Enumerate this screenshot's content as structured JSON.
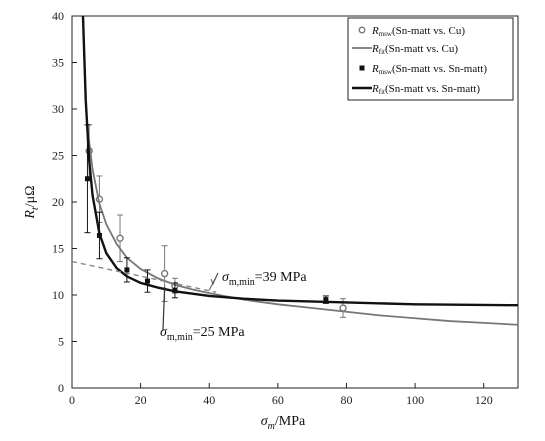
{
  "chart_data": {
    "type": "line",
    "title": "",
    "xlabel": "σm/MPa",
    "ylabel": "Rt/μΩ",
    "xlim": [
      0,
      130
    ],
    "ylim": [
      0,
      40
    ],
    "x_ticks": [
      "0",
      "20",
      "40",
      "60",
      "80",
      "100",
      "120"
    ],
    "y_ticks": [
      "0",
      "5",
      "10",
      "15",
      "20",
      "25",
      "30",
      "35",
      "40"
    ],
    "grid": false,
    "legend_position": "top-right",
    "series": [
      {
        "name": "Rmsw(Sn-matt vs. Cu)",
        "kind": "measured",
        "marker": "circle",
        "color": "#777777",
        "points": [
          {
            "x": 5,
            "y": 25.5,
            "err": 2.8
          },
          {
            "x": 8,
            "y": 20.3,
            "err": 2.5
          },
          {
            "x": 14,
            "y": 16.1,
            "err": 2.5
          },
          {
            "x": 27,
            "y": 12.3,
            "err": 3.0
          },
          {
            "x": 30,
            "y": 11.0,
            "err": 0.8
          },
          {
            "x": 79,
            "y": 8.6,
            "err": 1.0
          }
        ]
      },
      {
        "name": "Rfit(Sn-matt vs. Cu)",
        "kind": "fit",
        "color": "#777777",
        "stroke_width": 1.8,
        "x": [
          4.5,
          6,
          8,
          10,
          13,
          16,
          20,
          25,
          30,
          35,
          40,
          50,
          60,
          70,
          80,
          90,
          100,
          110,
          120,
          130
        ],
        "y": [
          28.0,
          23.5,
          19.8,
          17.6,
          15.5,
          14.0,
          12.8,
          11.8,
          11.1,
          10.6,
          10.2,
          9.5,
          9.0,
          8.6,
          8.2,
          7.8,
          7.5,
          7.2,
          7.0,
          6.8
        ]
      },
      {
        "name": "Rmsw(Sn-matt vs. Sn-matt)",
        "kind": "measured",
        "marker": "square",
        "color": "#111111",
        "points": [
          {
            "x": 4.5,
            "y": 22.5,
            "err": 5.8
          },
          {
            "x": 8,
            "y": 16.4,
            "err": 2.5
          },
          {
            "x": 16,
            "y": 12.7,
            "err": 1.3
          },
          {
            "x": 22,
            "y": 11.5,
            "err": 1.2
          },
          {
            "x": 30,
            "y": 10.5,
            "err": 0.8
          },
          {
            "x": 74,
            "y": 9.5,
            "err": 0.4
          }
        ]
      },
      {
        "name": "Rfit(Sn-matt vs. Sn-matt)",
        "kind": "fit",
        "color": "#111111",
        "stroke_width": 2.4,
        "x": [
          3.2,
          4,
          5,
          6,
          8,
          10,
          13,
          16,
          20,
          25,
          30,
          40,
          50,
          60,
          80,
          100,
          130
        ],
        "y": [
          40,
          31.0,
          24.5,
          20.7,
          16.6,
          14.5,
          12.9,
          12.0,
          11.3,
          10.8,
          10.4,
          9.9,
          9.6,
          9.4,
          9.2,
          9.0,
          8.9
        ]
      },
      {
        "kind": "tangent",
        "dashed": true,
        "color": "#888888",
        "x": [
          0,
          42
        ],
        "y": [
          13.6,
          10.3
        ]
      }
    ],
    "annotations": [
      {
        "text": "σm,min=39 MPa",
        "at": {
          "x": 40,
          "y": 10.3
        }
      },
      {
        "text": "σm,min=25 MPa",
        "at": {
          "x": 27,
          "y": 10.9
        }
      }
    ],
    "legend_order": [
      0,
      1,
      2,
      3
    ]
  }
}
